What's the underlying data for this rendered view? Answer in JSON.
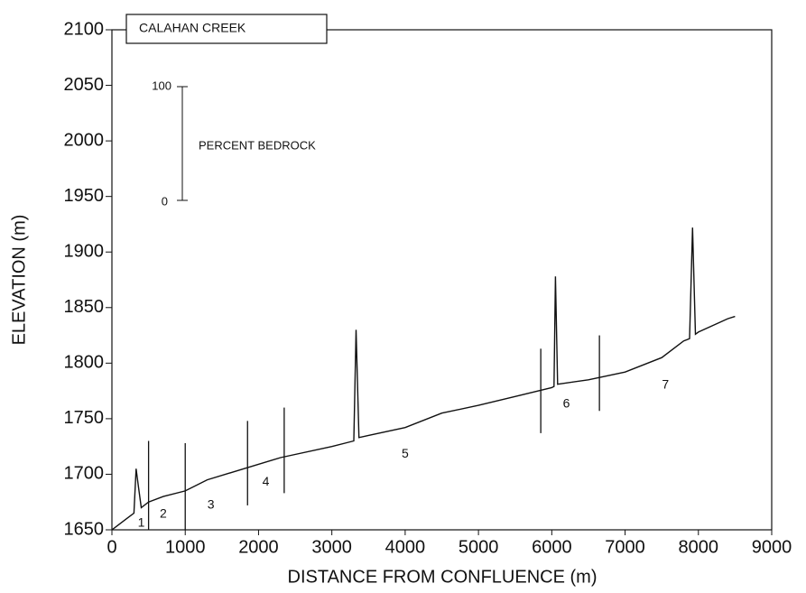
{
  "chart_data": {
    "type": "line",
    "title": "CALAHAN CREEK",
    "xlabel": "DISTANCE FROM CONFLUENCE (m)",
    "ylabel": "ELEVATION (m)",
    "color": "#111111",
    "x": [
      0,
      200,
      300,
      330,
      360,
      400,
      500,
      700,
      1000,
      1300,
      1800,
      2300,
      3000,
      3300,
      3330,
      3370,
      3500,
      4000,
      4500,
      5000,
      5500,
      6000,
      6030,
      6050,
      6080,
      6500,
      7000,
      7500,
      7800,
      7880,
      7920,
      7960,
      8000,
      8400,
      8500
    ],
    "values": [
      1650,
      1660,
      1665,
      1705,
      1690,
      1670,
      1675,
      1680,
      1685,
      1695,
      1705,
      1715,
      1725,
      1730,
      1830,
      1733,
      1735,
      1742,
      1755,
      1762,
      1770,
      1778,
      1779,
      1878,
      1781,
      1785,
      1792,
      1805,
      1820,
      1822,
      1922,
      1826,
      1828,
      1840,
      1842
    ],
    "boundaries": [
      {
        "x": 500,
        "ymin": 1650,
        "ymax": 1730
      },
      {
        "x": 1000,
        "ymin": 1650,
        "ymax": 1728
      },
      {
        "x": 1850,
        "ymin": 1672,
        "ymax": 1748
      },
      {
        "x": 2350,
        "ymin": 1683,
        "ymax": 1760
      },
      {
        "x": 5850,
        "ymin": 1737,
        "ymax": 1813
      },
      {
        "x": 6650,
        "ymin": 1757,
        "ymax": 1825
      }
    ],
    "reaches": [
      {
        "label": "1",
        "x": 400,
        "y": 1656
      },
      {
        "label": "2",
        "x": 700,
        "y": 1664
      },
      {
        "label": "3",
        "x": 1350,
        "y": 1672
      },
      {
        "label": "4",
        "x": 2100,
        "y": 1693
      },
      {
        "label": "5",
        "x": 4000,
        "y": 1718
      },
      {
        "label": "6",
        "x": 6200,
        "y": 1763
      },
      {
        "label": "7",
        "x": 7550,
        "y": 1780
      }
    ],
    "scale_bar": {
      "top_label": "100",
      "bottom_label": "0",
      "label": "PERCENT BEDROCK"
    },
    "xlim": [
      0,
      9000
    ],
    "xticks": [
      0,
      1000,
      2000,
      3000,
      4000,
      5000,
      6000,
      7000,
      8000,
      9000
    ],
    "ylim": [
      1650,
      2100
    ],
    "yticks": [
      1650,
      1700,
      1750,
      1800,
      1850,
      1900,
      1950,
      2000,
      2050,
      2100
    ],
    "grid": false
  }
}
